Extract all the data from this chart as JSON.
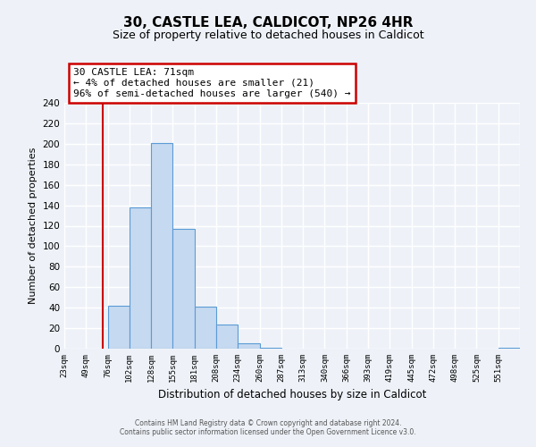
{
  "title": "30, CASTLE LEA, CALDICOT, NP26 4HR",
  "subtitle": "Size of property relative to detached houses in Caldicot",
  "xlabel": "Distribution of detached houses by size in Caldicot",
  "ylabel": "Number of detached properties",
  "bin_labels": [
    "23sqm",
    "49sqm",
    "76sqm",
    "102sqm",
    "128sqm",
    "155sqm",
    "181sqm",
    "208sqm",
    "234sqm",
    "260sqm",
    "287sqm",
    "313sqm",
    "340sqm",
    "366sqm",
    "393sqm",
    "419sqm",
    "445sqm",
    "472sqm",
    "498sqm",
    "525sqm",
    "551sqm"
  ],
  "bar_values": [
    0,
    0,
    42,
    138,
    201,
    117,
    41,
    24,
    5,
    1,
    0,
    0,
    0,
    0,
    0,
    0,
    0,
    0,
    0,
    0,
    1
  ],
  "bar_color": "#c5d9f0",
  "bar_edge_color": "#5b9bd5",
  "ylim": [
    0,
    240
  ],
  "yticks": [
    0,
    20,
    40,
    60,
    80,
    100,
    120,
    140,
    160,
    180,
    200,
    220,
    240
  ],
  "property_size": 71,
  "red_line_color": "#cc0000",
  "annotation_title": "30 CASTLE LEA: 71sqm",
  "annotation_line1": "← 4% of detached houses are smaller (21)",
  "annotation_line2": "96% of semi-detached houses are larger (540) →",
  "annotation_box_edge": "#cc0000",
  "footer_line1": "Contains HM Land Registry data © Crown copyright and database right 2024.",
  "footer_line2": "Contains public sector information licensed under the Open Government Licence v3.0.",
  "background_color": "#eef2f8",
  "grid_color": "#d0d8e8",
  "title_fontsize": 11,
  "subtitle_fontsize": 9,
  "bin_width": 27
}
